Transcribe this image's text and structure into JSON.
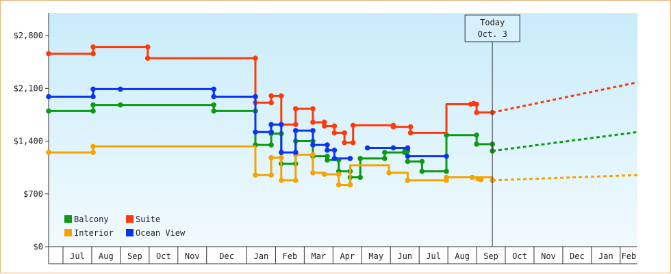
{
  "chart_data": {
    "type": "line",
    "title": "",
    "xlabel": "",
    "ylabel": "",
    "ylim": [
      0,
      3100
    ],
    "y_ticks": [
      0,
      700,
      1400,
      2100,
      2800
    ],
    "y_tick_labels": [
      "$0",
      "$700",
      "$1,400",
      "$2,100",
      "$2,800"
    ],
    "x_range": [
      0,
      20.5
    ],
    "months": [
      "Jul",
      "Aug",
      "Sep",
      "Oct",
      "Nov",
      "Dec",
      "Jan",
      "Feb",
      "Mar",
      "Apr",
      "May",
      "Jun",
      "Jul",
      "Aug",
      "Sep",
      "Oct",
      "Nov",
      "Dec",
      "Jan",
      "Feb"
    ],
    "month_spans": [
      [
        0.5,
        1.5
      ],
      [
        1.5,
        2.5
      ],
      [
        2.5,
        3.5
      ],
      [
        3.5,
        4.5
      ],
      [
        4.5,
        5.5
      ],
      [
        5.5,
        6.9
      ],
      [
        6.9,
        7.9
      ],
      [
        7.9,
        8.9
      ],
      [
        8.9,
        9.9
      ],
      [
        9.9,
        10.9
      ],
      [
        10.9,
        11.9
      ],
      [
        11.9,
        12.9
      ],
      [
        12.9,
        13.9
      ],
      [
        13.9,
        14.9
      ],
      [
        14.9,
        15.9
      ],
      [
        15.9,
        16.9
      ],
      [
        16.9,
        17.9
      ],
      [
        17.9,
        18.9
      ],
      [
        18.9,
        19.9
      ],
      [
        19.9,
        20.5
      ]
    ],
    "today": {
      "label_line1": "Today",
      "label_line2": "Oct. 3",
      "x": 15.45
    },
    "legend_position": "bottom-left",
    "grid": false,
    "series": [
      {
        "name": "Balcony",
        "color": "#0a9b12",
        "values": [
          [
            0,
            1800
          ],
          [
            1.55,
            1800
          ],
          [
            1.55,
            1880
          ],
          [
            2.5,
            1880
          ],
          [
            5.75,
            1880
          ],
          [
            5.75,
            1800
          ],
          [
            7.2,
            1800
          ],
          [
            7.2,
            1350
          ],
          [
            7.75,
            1350
          ],
          [
            7.75,
            1500
          ],
          [
            8.1,
            1500
          ],
          [
            8.1,
            1100
          ],
          [
            8.6,
            1100
          ],
          [
            8.6,
            1400
          ],
          [
            9.2,
            1400
          ],
          [
            9.2,
            1200
          ],
          [
            9.7,
            1200
          ],
          [
            9.7,
            1150
          ],
          [
            10.1,
            1150
          ],
          [
            10.1,
            1000
          ],
          [
            10.5,
            1000
          ],
          [
            10.5,
            920
          ],
          [
            10.85,
            920
          ],
          [
            10.85,
            1170
          ],
          [
            11.7,
            1170
          ],
          [
            11.7,
            1250
          ],
          [
            12.4,
            1250
          ],
          [
            12.4,
            1270
          ],
          [
            12.5,
            1270
          ],
          [
            12.5,
            1130
          ],
          [
            13.0,
            1130
          ],
          [
            13.0,
            1000
          ],
          [
            13.85,
            1000
          ],
          [
            13.85,
            1480
          ],
          [
            14.9,
            1480
          ],
          [
            14.9,
            1360
          ],
          [
            15.45,
            1360
          ],
          [
            15.45,
            1270
          ]
        ],
        "projection": [
          [
            15.45,
            1270
          ],
          [
            20.5,
            1520
          ]
        ],
        "markers": [
          [
            0,
            1800
          ],
          [
            1.55,
            1800
          ],
          [
            1.55,
            1880
          ],
          [
            2.5,
            1880
          ],
          [
            5.75,
            1880
          ],
          [
            5.75,
            1800
          ],
          [
            7.2,
            1800
          ],
          [
            7.2,
            1350
          ],
          [
            7.75,
            1350
          ],
          [
            7.75,
            1500
          ],
          [
            8.1,
            1500
          ],
          [
            8.1,
            1100
          ],
          [
            8.6,
            1100
          ],
          [
            8.6,
            1400
          ],
          [
            9.2,
            1400
          ],
          [
            9.2,
            1200
          ],
          [
            9.7,
            1200
          ],
          [
            9.7,
            1150
          ],
          [
            10.1,
            1150
          ],
          [
            10.1,
            1000
          ],
          [
            10.5,
            1000
          ],
          [
            10.5,
            920
          ],
          [
            10.85,
            920
          ],
          [
            10.85,
            1170
          ],
          [
            11.7,
            1170
          ],
          [
            11.7,
            1250
          ],
          [
            12.4,
            1250
          ],
          [
            12.4,
            1270
          ],
          [
            12.5,
            1270
          ],
          [
            12.5,
            1130
          ],
          [
            13.0,
            1130
          ],
          [
            13.0,
            1000
          ],
          [
            13.85,
            1000
          ],
          [
            13.85,
            1480
          ],
          [
            14.9,
            1480
          ],
          [
            14.9,
            1360
          ],
          [
            15.45,
            1360
          ],
          [
            15.45,
            1270
          ]
        ]
      },
      {
        "name": "Suite",
        "color": "#ff3a0a",
        "values": [
          [
            0,
            2560
          ],
          [
            1.55,
            2560
          ],
          [
            1.55,
            2650
          ],
          [
            3.45,
            2650
          ],
          [
            3.45,
            2500
          ],
          [
            7.2,
            2500
          ],
          [
            7.2,
            1910
          ],
          [
            7.75,
            1910
          ],
          [
            7.75,
            2000
          ],
          [
            8.1,
            2000
          ],
          [
            8.1,
            1620
          ],
          [
            8.6,
            1620
          ],
          [
            8.6,
            1830
          ],
          [
            9.2,
            1830
          ],
          [
            9.2,
            1650
          ],
          [
            9.6,
            1650
          ],
          [
            9.6,
            1600
          ],
          [
            9.95,
            1600
          ],
          [
            9.95,
            1510
          ],
          [
            10.3,
            1510
          ],
          [
            10.3,
            1380
          ],
          [
            10.6,
            1380
          ],
          [
            10.6,
            1610
          ],
          [
            12.0,
            1610
          ],
          [
            12.0,
            1590
          ],
          [
            12.6,
            1590
          ],
          [
            12.6,
            1510
          ],
          [
            13.85,
            1510
          ],
          [
            13.85,
            1890
          ],
          [
            14.9,
            1890
          ],
          [
            14.9,
            1780
          ],
          [
            15.45,
            1780
          ]
        ],
        "projection": [
          [
            15.45,
            1780
          ],
          [
            20.5,
            2180
          ]
        ],
        "markers": [
          [
            0,
            2560
          ],
          [
            1.55,
            2560
          ],
          [
            1.55,
            2650
          ],
          [
            3.45,
            2650
          ],
          [
            3.45,
            2500
          ],
          [
            7.2,
            2500
          ],
          [
            7.2,
            1910
          ],
          [
            7.75,
            1910
          ],
          [
            7.75,
            2000
          ],
          [
            8.1,
            2000
          ],
          [
            8.1,
            1620
          ],
          [
            8.6,
            1620
          ],
          [
            8.6,
            1830
          ],
          [
            9.2,
            1830
          ],
          [
            9.2,
            1650
          ],
          [
            9.6,
            1650
          ],
          [
            9.6,
            1600
          ],
          [
            9.95,
            1600
          ],
          [
            9.95,
            1510
          ],
          [
            10.3,
            1510
          ],
          [
            10.3,
            1380
          ],
          [
            10.6,
            1380
          ],
          [
            10.6,
            1610
          ],
          [
            12.0,
            1610
          ],
          [
            12.0,
            1590
          ],
          [
            12.6,
            1590
          ],
          [
            12.6,
            1510
          ],
          [
            14.7,
            1890
          ],
          [
            14.8,
            1900
          ],
          [
            14.9,
            1890
          ],
          [
            14.9,
            1780
          ],
          [
            15.45,
            1780
          ]
        ]
      },
      {
        "name": "Interior",
        "color": "#f5a300",
        "values": [
          [
            0,
            1250
          ],
          [
            1.55,
            1250
          ],
          [
            1.55,
            1330
          ],
          [
            7.2,
            1330
          ],
          [
            7.2,
            950
          ],
          [
            7.75,
            950
          ],
          [
            7.75,
            1180
          ],
          [
            8.1,
            1180
          ],
          [
            8.1,
            880
          ],
          [
            8.6,
            880
          ],
          [
            8.6,
            1220
          ],
          [
            9.2,
            1220
          ],
          [
            9.2,
            980
          ],
          [
            9.6,
            980
          ],
          [
            9.6,
            960
          ],
          [
            10.1,
            960
          ],
          [
            10.1,
            820
          ],
          [
            10.5,
            820
          ],
          [
            10.5,
            1080
          ],
          [
            11.85,
            1080
          ],
          [
            11.85,
            980
          ],
          [
            12.5,
            980
          ],
          [
            12.5,
            880
          ],
          [
            13.85,
            880
          ],
          [
            13.85,
            920
          ],
          [
            15.45,
            920
          ],
          [
            15.45,
            880
          ]
        ],
        "projection": [
          [
            15.45,
            880
          ],
          [
            20.5,
            950
          ]
        ],
        "markers": [
          [
            0,
            1250
          ],
          [
            1.55,
            1250
          ],
          [
            1.55,
            1330
          ],
          [
            7.2,
            950
          ],
          [
            7.75,
            950
          ],
          [
            7.75,
            1180
          ],
          [
            8.1,
            1180
          ],
          [
            8.1,
            880
          ],
          [
            8.6,
            880
          ],
          [
            8.6,
            1220
          ],
          [
            9.2,
            1220
          ],
          [
            9.2,
            980
          ],
          [
            9.6,
            960
          ],
          [
            10.1,
            960
          ],
          [
            10.1,
            820
          ],
          [
            10.5,
            820
          ],
          [
            11.85,
            980
          ],
          [
            12.5,
            880
          ],
          [
            13.85,
            880
          ],
          [
            13.85,
            920
          ],
          [
            14.75,
            920
          ],
          [
            14.95,
            900
          ],
          [
            15.05,
            890
          ],
          [
            15.45,
            880
          ]
        ]
      },
      {
        "name": "Ocean View",
        "color": "#0a34f0",
        "values": [
          [
            0,
            1990
          ],
          [
            1.55,
            1990
          ],
          [
            1.55,
            2090
          ],
          [
            2.5,
            2090
          ],
          [
            5.75,
            2090
          ],
          [
            5.75,
            1990
          ],
          [
            7.2,
            1990
          ],
          [
            7.2,
            1520
          ],
          [
            7.75,
            1520
          ],
          [
            7.75,
            1620
          ],
          [
            8.1,
            1620
          ],
          [
            8.1,
            1250
          ],
          [
            8.6,
            1250
          ],
          [
            8.6,
            1540
          ],
          [
            9.2,
            1540
          ],
          [
            9.2,
            1350
          ],
          [
            9.7,
            1350
          ],
          [
            9.7,
            1280
          ],
          [
            9.95,
            1280
          ],
          [
            9.95,
            1170
          ],
          [
            10.5,
            1170
          ]
        ],
        "projection": [],
        "extra_segments": [
          [
            [
              11.1,
              1310
            ],
            [
              12.5,
              1310
            ]
          ],
          [
            [
              12.5,
              1200
            ],
            [
              13.85,
              1200
            ]
          ]
        ],
        "markers": [
          [
            0,
            1990
          ],
          [
            1.55,
            1990
          ],
          [
            1.55,
            2090
          ],
          [
            2.5,
            2090
          ],
          [
            5.75,
            2090
          ],
          [
            5.75,
            1990
          ],
          [
            7.2,
            1990
          ],
          [
            7.2,
            1520
          ],
          [
            7.75,
            1520
          ],
          [
            7.75,
            1620
          ],
          [
            8.1,
            1620
          ],
          [
            8.1,
            1250
          ],
          [
            8.6,
            1250
          ],
          [
            8.6,
            1540
          ],
          [
            9.2,
            1540
          ],
          [
            9.2,
            1350
          ],
          [
            9.7,
            1350
          ],
          [
            9.7,
            1280
          ],
          [
            9.95,
            1280
          ],
          [
            9.95,
            1170
          ],
          [
            10.5,
            1170
          ],
          [
            11.1,
            1310
          ],
          [
            12.0,
            1310
          ],
          [
            12.5,
            1310
          ],
          [
            12.5,
            1200
          ],
          [
            13.85,
            1200
          ]
        ]
      }
    ]
  }
}
